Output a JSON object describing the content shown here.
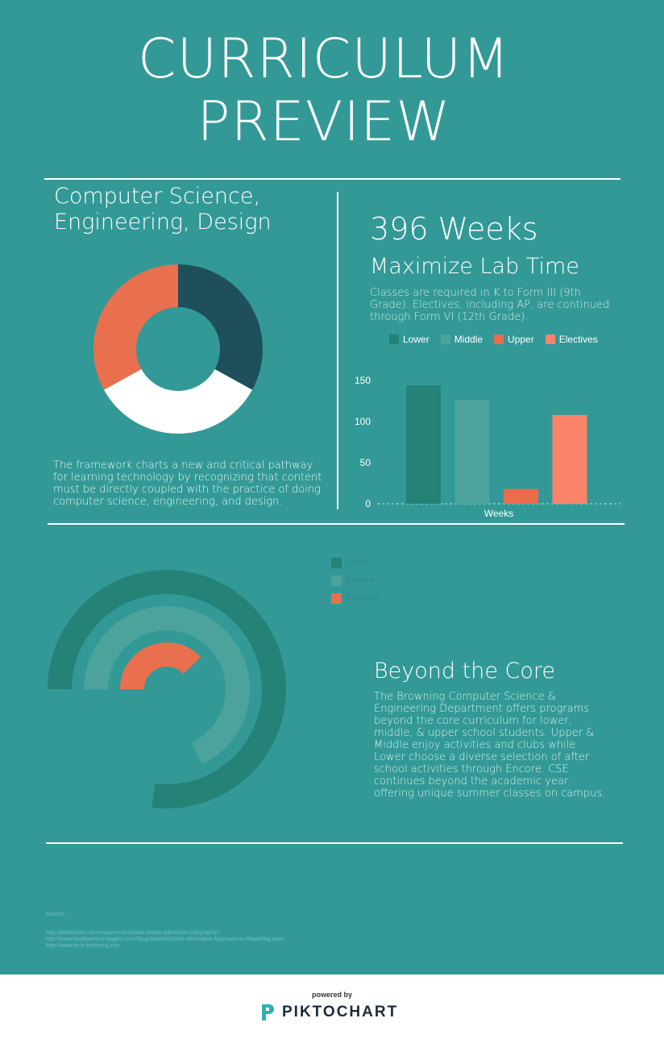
{
  "header": {
    "title_line1": "CURRICULUM",
    "title_line2": "PREVIEW"
  },
  "left_panel": {
    "heading_line1": "Computer Science,",
    "heading_line2": "Engineering, Design",
    "description": "The framework charts a new and critical pathway for learning technology by recognizing that content must be directly coupled with the practice of doing computer science, engineering, and design."
  },
  "right_panel": {
    "weeks": "396 Weeks",
    "subheading": "Maximize Lab Time",
    "description": "Classes are required in K to Form III (9th Grade). Electives, including AP, are continued through Form VI (12th Grade)."
  },
  "beyond": {
    "heading": "Beyond the Core",
    "text": "The Browning Computer Science & Engineering Department offers programs beyond the core curriculum for lower, middle, & upper school students. Upper & Middle enjoy activities and clubs while Lower choose a diverse selection of after school activities through Encore. CSE continues beyond the academic year offering unique summer classes on campus."
  },
  "radial_legend": [
    "Clubs",
    "Encore",
    "Summer"
  ],
  "sources": {
    "label": "Source:",
    "links": [
      "http://piktochart.com/resources/tutorials-create-piktochart-infographic/",
      "http://www.keylineelectrologies.com/Blog/Article/2425/A-Minimalist-Approach-to-Reporting.aspx",
      "http://www.tech.browning.edu"
    ]
  },
  "footer": {
    "powered_by": "powered by",
    "brand": "PIKTOCHART"
  },
  "colors": {
    "background": "#339997",
    "dark_teal": "#1f4f5b",
    "coral": "#e8704f",
    "white": "#ffffff",
    "lower": "#248277",
    "middle": "#4ba39b",
    "upper": "#ec6b4b",
    "electives": "#fb836a",
    "clubs": "#248277",
    "encore": "#4ba39b",
    "summer": "#e8704f"
  },
  "chart_data": [
    {
      "type": "pie",
      "variant": "donut",
      "values": [
        33,
        34,
        33
      ],
      "colors": [
        "#1f4f5b",
        "#ffffff",
        "#e8704f"
      ]
    },
    {
      "type": "bar",
      "categories": [
        "Lower",
        "Middle",
        "Upper",
        "Electives"
      ],
      "values": [
        144,
        126,
        18,
        108
      ],
      "xlabel": "Weeks",
      "ylabel": "",
      "yticks": [
        0,
        50,
        100,
        150
      ],
      "ylim": [
        0,
        150
      ],
      "legend": "top",
      "colors": [
        "#248277",
        "#4ba39b",
        "#ec6b4b",
        "#fb836a"
      ]
    },
    {
      "type": "radial-bar",
      "series": [
        {
          "name": "Clubs",
          "value": 77
        },
        {
          "name": "Encore",
          "value": 68
        },
        {
          "name": "Summer",
          "value": 38
        }
      ],
      "colors": [
        "#248277",
        "#4ba39b",
        "#e8704f"
      ],
      "legend": "top-right"
    }
  ]
}
